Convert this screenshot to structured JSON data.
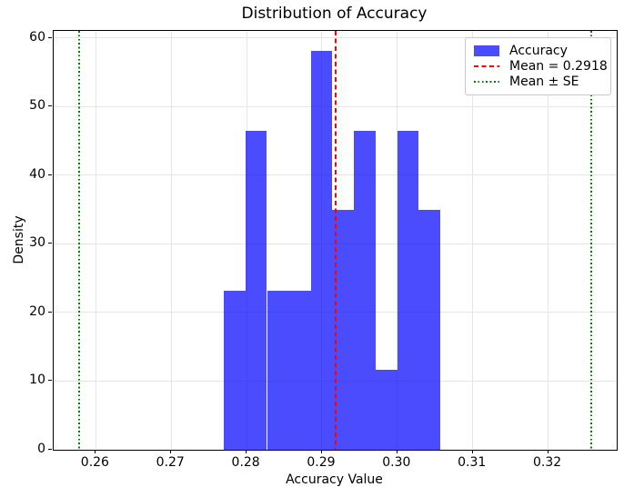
{
  "figure": {
    "title": "Distribution of Accuracy",
    "xlabel": "Accuracy Value",
    "ylabel": "Density"
  },
  "legend": {
    "items": [
      {
        "label": "Accuracy",
        "type": "patch",
        "color": "#0000ff",
        "alpha": 0.7
      },
      {
        "label": "Mean = 0.2918",
        "type": "dashed-line",
        "color": "#ff0000"
      },
      {
        "label": "Mean ± SE",
        "type": "dotted-line",
        "color": "#008000"
      }
    ]
  },
  "chart_data": {
    "type": "bar",
    "subtype": "histogram",
    "title": "Distribution of Accuracy",
    "xlabel": "Accuracy Value",
    "ylabel": "Density",
    "bin_edges": [
      0.277,
      0.2799,
      0.2827,
      0.2856,
      0.2885,
      0.2913,
      0.2942,
      0.2971,
      0.3,
      0.3028,
      0.3057
    ],
    "densities": [
      23.2,
      46.5,
      23.2,
      23.2,
      58.1,
      34.9,
      46.5,
      11.6,
      46.5,
      34.9
    ],
    "bar_color": "#0000ff",
    "bar_alpha": 0.7,
    "mean_line": {
      "value": 0.2918,
      "style": "dashed",
      "color": "#ff0000",
      "label": "Mean = 0.2918"
    },
    "se_lines": {
      "values": [
        0.2578,
        0.3257
      ],
      "style": "dotted",
      "color": "#008000",
      "label": "Mean ± SE"
    },
    "x_tick_values": [
      0.26,
      0.27,
      0.28,
      0.29,
      0.3,
      0.31,
      0.32
    ],
    "x_tick_labels": [
      "0.26",
      "0.27",
      "0.28",
      "0.29",
      "0.30",
      "0.31",
      "0.32"
    ],
    "y_tick_values": [
      0,
      10,
      20,
      30,
      40,
      50,
      60
    ],
    "y_tick_labels": [
      "0",
      "10",
      "20",
      "30",
      "40",
      "50",
      "60"
    ],
    "xlim": [
      0.2544,
      0.3291
    ],
    "ylim": [
      0,
      61
    ],
    "grid": true,
    "grid_color": "#e6e6e6",
    "legend_position": "upper right"
  }
}
